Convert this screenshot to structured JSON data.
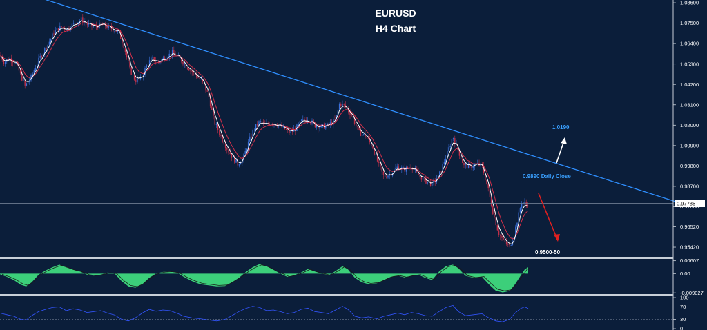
{
  "colors": {
    "background": "#0b1e3a",
    "axis": "#c8cfd8",
    "candle_up": "#3b6fd8",
    "candle_down": "#c0304a",
    "ma_fast": "#ffffff",
    "ma_slow": "#d2304a",
    "trendline": "#2f8fff",
    "hist_fill": "#3ccf7a",
    "rsi_line": "#3355ff",
    "price_line": "#7f8ca0",
    "arrow_up": "#ffffff",
    "arrow_down": "#e02020",
    "label_blue": "#3aa0ff"
  },
  "chart_data": [
    {
      "type": "candlestick",
      "title": "EURUSD",
      "subtitle": "H4 Chart",
      "ylim": [
        0.949,
        1.0875
      ],
      "y_ticks": [
        "1.08600",
        "1.07500",
        "1.06400",
        "1.05300",
        "1.04200",
        "1.03100",
        "1.02000",
        "1.00900",
        "0.99800",
        "0.98700",
        "0.97600",
        "0.96520",
        "0.95420"
      ],
      "y_tick_values": [
        1.086,
        1.075,
        1.064,
        1.053,
        1.042,
        1.031,
        1.02,
        1.009,
        0.998,
        0.987,
        0.976,
        0.9652,
        0.9542
      ],
      "current_price": "0.97785",
      "current_price_value": 0.97785,
      "path_points": [
        [
          0,
          1.058
        ],
        [
          6,
          1.054
        ],
        [
          14,
          1.056
        ],
        [
          22,
          1.054
        ],
        [
          30,
          1.047
        ],
        [
          36,
          1.041
        ],
        [
          44,
          1.045
        ],
        [
          52,
          1.052
        ],
        [
          60,
          1.058
        ],
        [
          70,
          1.064
        ],
        [
          78,
          1.07
        ],
        [
          88,
          1.073
        ],
        [
          98,
          1.072
        ],
        [
          108,
          1.075
        ],
        [
          118,
          1.077
        ],
        [
          128,
          1.074
        ],
        [
          138,
          1.073
        ],
        [
          148,
          1.0745
        ],
        [
          158,
          1.0725
        ],
        [
          166,
          1.0715
        ],
        [
          172,
          1.07
        ],
        [
          180,
          1.062
        ],
        [
          188,
          1.05
        ],
        [
          196,
          1.044
        ],
        [
          204,
          1.045
        ],
        [
          212,
          1.052
        ],
        [
          220,
          1.056
        ],
        [
          230,
          1.054
        ],
        [
          240,
          1.057
        ],
        [
          250,
          1.059
        ],
        [
          260,
          1.056
        ],
        [
          270,
          1.052
        ],
        [
          280,
          1.048
        ],
        [
          292,
          1.044
        ],
        [
          302,
          1.036
        ],
        [
          310,
          1.022
        ],
        [
          320,
          1.014
        ],
        [
          328,
          1.008
        ],
        [
          336,
          1.003
        ],
        [
          344,
          0.999
        ],
        [
          352,
          1.002
        ],
        [
          360,
          1.011
        ],
        [
          368,
          1.018
        ],
        [
          376,
          1.022
        ],
        [
          384,
          1.02
        ],
        [
          392,
          1.0215
        ],
        [
          402,
          1.0205
        ],
        [
          412,
          1.018
        ],
        [
          420,
          1.016
        ],
        [
          428,
          1.018
        ],
        [
          436,
          1.022
        ],
        [
          446,
          1.0235
        ],
        [
          456,
          1.02
        ],
        [
          466,
          1.019
        ],
        [
          476,
          1.02
        ],
        [
          486,
          1.023
        ],
        [
          492,
          1.032
        ],
        [
          500,
          1.03
        ],
        [
          510,
          1.025
        ],
        [
          520,
          1.016
        ],
        [
          530,
          1.014
        ],
        [
          540,
          1.008
        ],
        [
          548,
          0.999
        ],
        [
          556,
          0.992
        ],
        [
          566,
          0.994
        ],
        [
          576,
          0.9975
        ],
        [
          586,
          0.996
        ],
        [
          596,
          0.998
        ],
        [
          606,
          0.993
        ],
        [
          616,
          0.99
        ],
        [
          626,
          0.988
        ],
        [
          636,
          0.993
        ],
        [
          646,
          1.003
        ],
        [
          656,
          1.014
        ],
        [
          664,
          1.006
        ],
        [
          672,
          0.998
        ],
        [
          680,
          0.9975
        ],
        [
          690,
          0.999
        ],
        [
          698,
          0.998
        ],
        [
          706,
          0.987
        ],
        [
          714,
          0.973
        ],
        [
          722,
          0.962
        ],
        [
          730,
          0.957
        ],
        [
          738,
          0.9545
        ],
        [
          744,
          0.96
        ],
        [
          750,
          0.97
        ],
        [
          756,
          0.979
        ],
        [
          762,
          0.977
        ],
        [
          766,
          0.9778
        ]
      ],
      "trendline": [
        [
          55,
          1.089
        ],
        [
          985,
          0.978
        ]
      ],
      "annotations": [
        {
          "text": "1.0190",
          "kind": "target_up",
          "value": 1.019
        },
        {
          "text": "0.9890 Daily Close",
          "kind": "level",
          "value": 0.989
        },
        {
          "text": "0.9500-50",
          "kind": "target_down",
          "value": 0.955
        }
      ]
    },
    {
      "type": "histogram",
      "name": "oscillator",
      "ylim": [
        -0.0093,
        0.0066
      ],
      "y_ticks": [
        "0.00607",
        "0.00",
        "-0.009027"
      ],
      "y_tick_values": [
        0.00607,
        0.0,
        -0.009027
      ],
      "points": [
        [
          0,
          -0.0003
        ],
        [
          10,
          -0.0015
        ],
        [
          20,
          -0.003
        ],
        [
          30,
          -0.0052
        ],
        [
          38,
          -0.006
        ],
        [
          46,
          -0.004
        ],
        [
          56,
          -0.0005
        ],
        [
          66,
          0.0015
        ],
        [
          76,
          0.003
        ],
        [
          86,
          0.0042
        ],
        [
          96,
          0.003
        ],
        [
          106,
          0.0018
        ],
        [
          116,
          0.001
        ],
        [
          126,
          -0.0005
        ],
        [
          136,
          -0.001
        ],
        [
          146,
          -0.0005
        ],
        [
          156,
          0.0005
        ],
        [
          166,
          0.0
        ],
        [
          176,
          -0.0035
        ],
        [
          186,
          -0.006
        ],
        [
          196,
          -0.0066
        ],
        [
          206,
          -0.005
        ],
        [
          216,
          -0.002
        ],
        [
          226,
          0.0
        ],
        [
          236,
          0.0008
        ],
        [
          246,
          0.001
        ],
        [
          256,
          0.0005
        ],
        [
          266,
          -0.0015
        ],
        [
          278,
          -0.0035
        ],
        [
          290,
          -0.005
        ],
        [
          302,
          -0.0055
        ],
        [
          314,
          -0.006
        ],
        [
          326,
          -0.0058
        ],
        [
          336,
          -0.004
        ],
        [
          346,
          -0.002
        ],
        [
          356,
          0.0008
        ],
        [
          366,
          0.003
        ],
        [
          376,
          0.0045
        ],
        [
          386,
          0.0035
        ],
        [
          396,
          0.0018
        ],
        [
          406,
          0.0
        ],
        [
          416,
          -0.0015
        ],
        [
          426,
          -0.0008
        ],
        [
          436,
          0.0005
        ],
        [
          446,
          0.0022
        ],
        [
          456,
          0.001
        ],
        [
          466,
          0.0
        ],
        [
          476,
          -0.0008
        ],
        [
          486,
          0.0012
        ],
        [
          496,
          0.0035
        ],
        [
          504,
          0.002
        ],
        [
          514,
          -0.002
        ],
        [
          524,
          -0.004
        ],
        [
          534,
          -0.005
        ],
        [
          546,
          -0.0045
        ],
        [
          556,
          -0.003
        ],
        [
          566,
          -0.0015
        ],
        [
          576,
          -0.001
        ],
        [
          586,
          -0.0018
        ],
        [
          596,
          -0.001
        ],
        [
          606,
          -0.0005
        ],
        [
          616,
          -0.002
        ],
        [
          626,
          -0.003
        ],
        [
          636,
          0.001
        ],
        [
          646,
          0.0035
        ],
        [
          656,
          0.0042
        ],
        [
          664,
          0.0025
        ],
        [
          674,
          -0.001
        ],
        [
          686,
          -0.002
        ],
        [
          698,
          -0.0015
        ],
        [
          708,
          -0.005
        ],
        [
          718,
          -0.008
        ],
        [
          728,
          -0.0088
        ],
        [
          738,
          -0.0082
        ],
        [
          746,
          -0.005
        ],
        [
          754,
          -0.001
        ],
        [
          760,
          0.002
        ],
        [
          765,
          0.003
        ]
      ]
    },
    {
      "type": "line",
      "name": "rsi",
      "ylim": [
        0,
        100
      ],
      "y_ticks": [
        "100",
        "70",
        "30",
        "0"
      ],
      "y_tick_values": [
        100,
        70,
        30,
        0
      ],
      "levels": [
        70,
        30
      ],
      "points": [
        [
          0,
          50
        ],
        [
          10,
          45
        ],
        [
          20,
          40
        ],
        [
          30,
          30
        ],
        [
          38,
          28
        ],
        [
          46,
          42
        ],
        [
          56,
          55
        ],
        [
          66,
          62
        ],
        [
          76,
          68
        ],
        [
          86,
          70
        ],
        [
          96,
          58
        ],
        [
          106,
          64
        ],
        [
          116,
          60
        ],
        [
          126,
          52
        ],
        [
          136,
          55
        ],
        [
          146,
          58
        ],
        [
          156,
          50
        ],
        [
          166,
          44
        ],
        [
          176,
          30
        ],
        [
          186,
          25
        ],
        [
          196,
          35
        ],
        [
          206,
          50
        ],
        [
          216,
          62
        ],
        [
          226,
          56
        ],
        [
          236,
          60
        ],
        [
          246,
          58
        ],
        [
          256,
          50
        ],
        [
          266,
          40
        ],
        [
          278,
          35
        ],
        [
          290,
          32
        ],
        [
          302,
          28
        ],
        [
          314,
          25
        ],
        [
          326,
          30
        ],
        [
          336,
          42
        ],
        [
          346,
          55
        ],
        [
          356,
          65
        ],
        [
          366,
          72
        ],
        [
          376,
          68
        ],
        [
          386,
          58
        ],
        [
          396,
          60
        ],
        [
          406,
          55
        ],
        [
          416,
          48
        ],
        [
          426,
          52
        ],
        [
          436,
          62
        ],
        [
          446,
          66
        ],
        [
          456,
          55
        ],
        [
          466,
          52
        ],
        [
          476,
          48
        ],
        [
          486,
          60
        ],
        [
          496,
          72
        ],
        [
          504,
          62
        ],
        [
          514,
          40
        ],
        [
          524,
          35
        ],
        [
          534,
          38
        ],
        [
          546,
          32
        ],
        [
          556,
          40
        ],
        [
          566,
          45
        ],
        [
          576,
          50
        ],
        [
          586,
          45
        ],
        [
          596,
          52
        ],
        [
          606,
          48
        ],
        [
          616,
          42
        ],
        [
          626,
          40
        ],
        [
          636,
          55
        ],
        [
          646,
          68
        ],
        [
          656,
          75
        ],
        [
          664,
          55
        ],
        [
          674,
          42
        ],
        [
          686,
          45
        ],
        [
          698,
          48
        ],
        [
          708,
          35
        ],
        [
          718,
          25
        ],
        [
          728,
          22
        ],
        [
          738,
          30
        ],
        [
          746,
          50
        ],
        [
          754,
          65
        ],
        [
          760,
          70
        ],
        [
          765,
          65
        ]
      ]
    }
  ]
}
